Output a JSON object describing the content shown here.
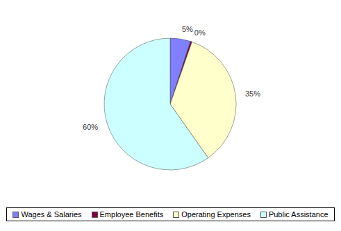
{
  "chart_data": {
    "type": "pie",
    "categories": [
      "Wages & Salaries",
      "Employee Benefits",
      "Operating Expenses",
      "Public Assistance"
    ],
    "values": [
      5,
      0.4,
      35,
      60
    ],
    "value_labels": [
      "5%",
      "0%",
      "35%",
      "60%"
    ],
    "colors": [
      "#8080ff",
      "#800040",
      "#ffffcc",
      "#ccffff"
    ],
    "legend": "bottom",
    "data_labels": true
  }
}
